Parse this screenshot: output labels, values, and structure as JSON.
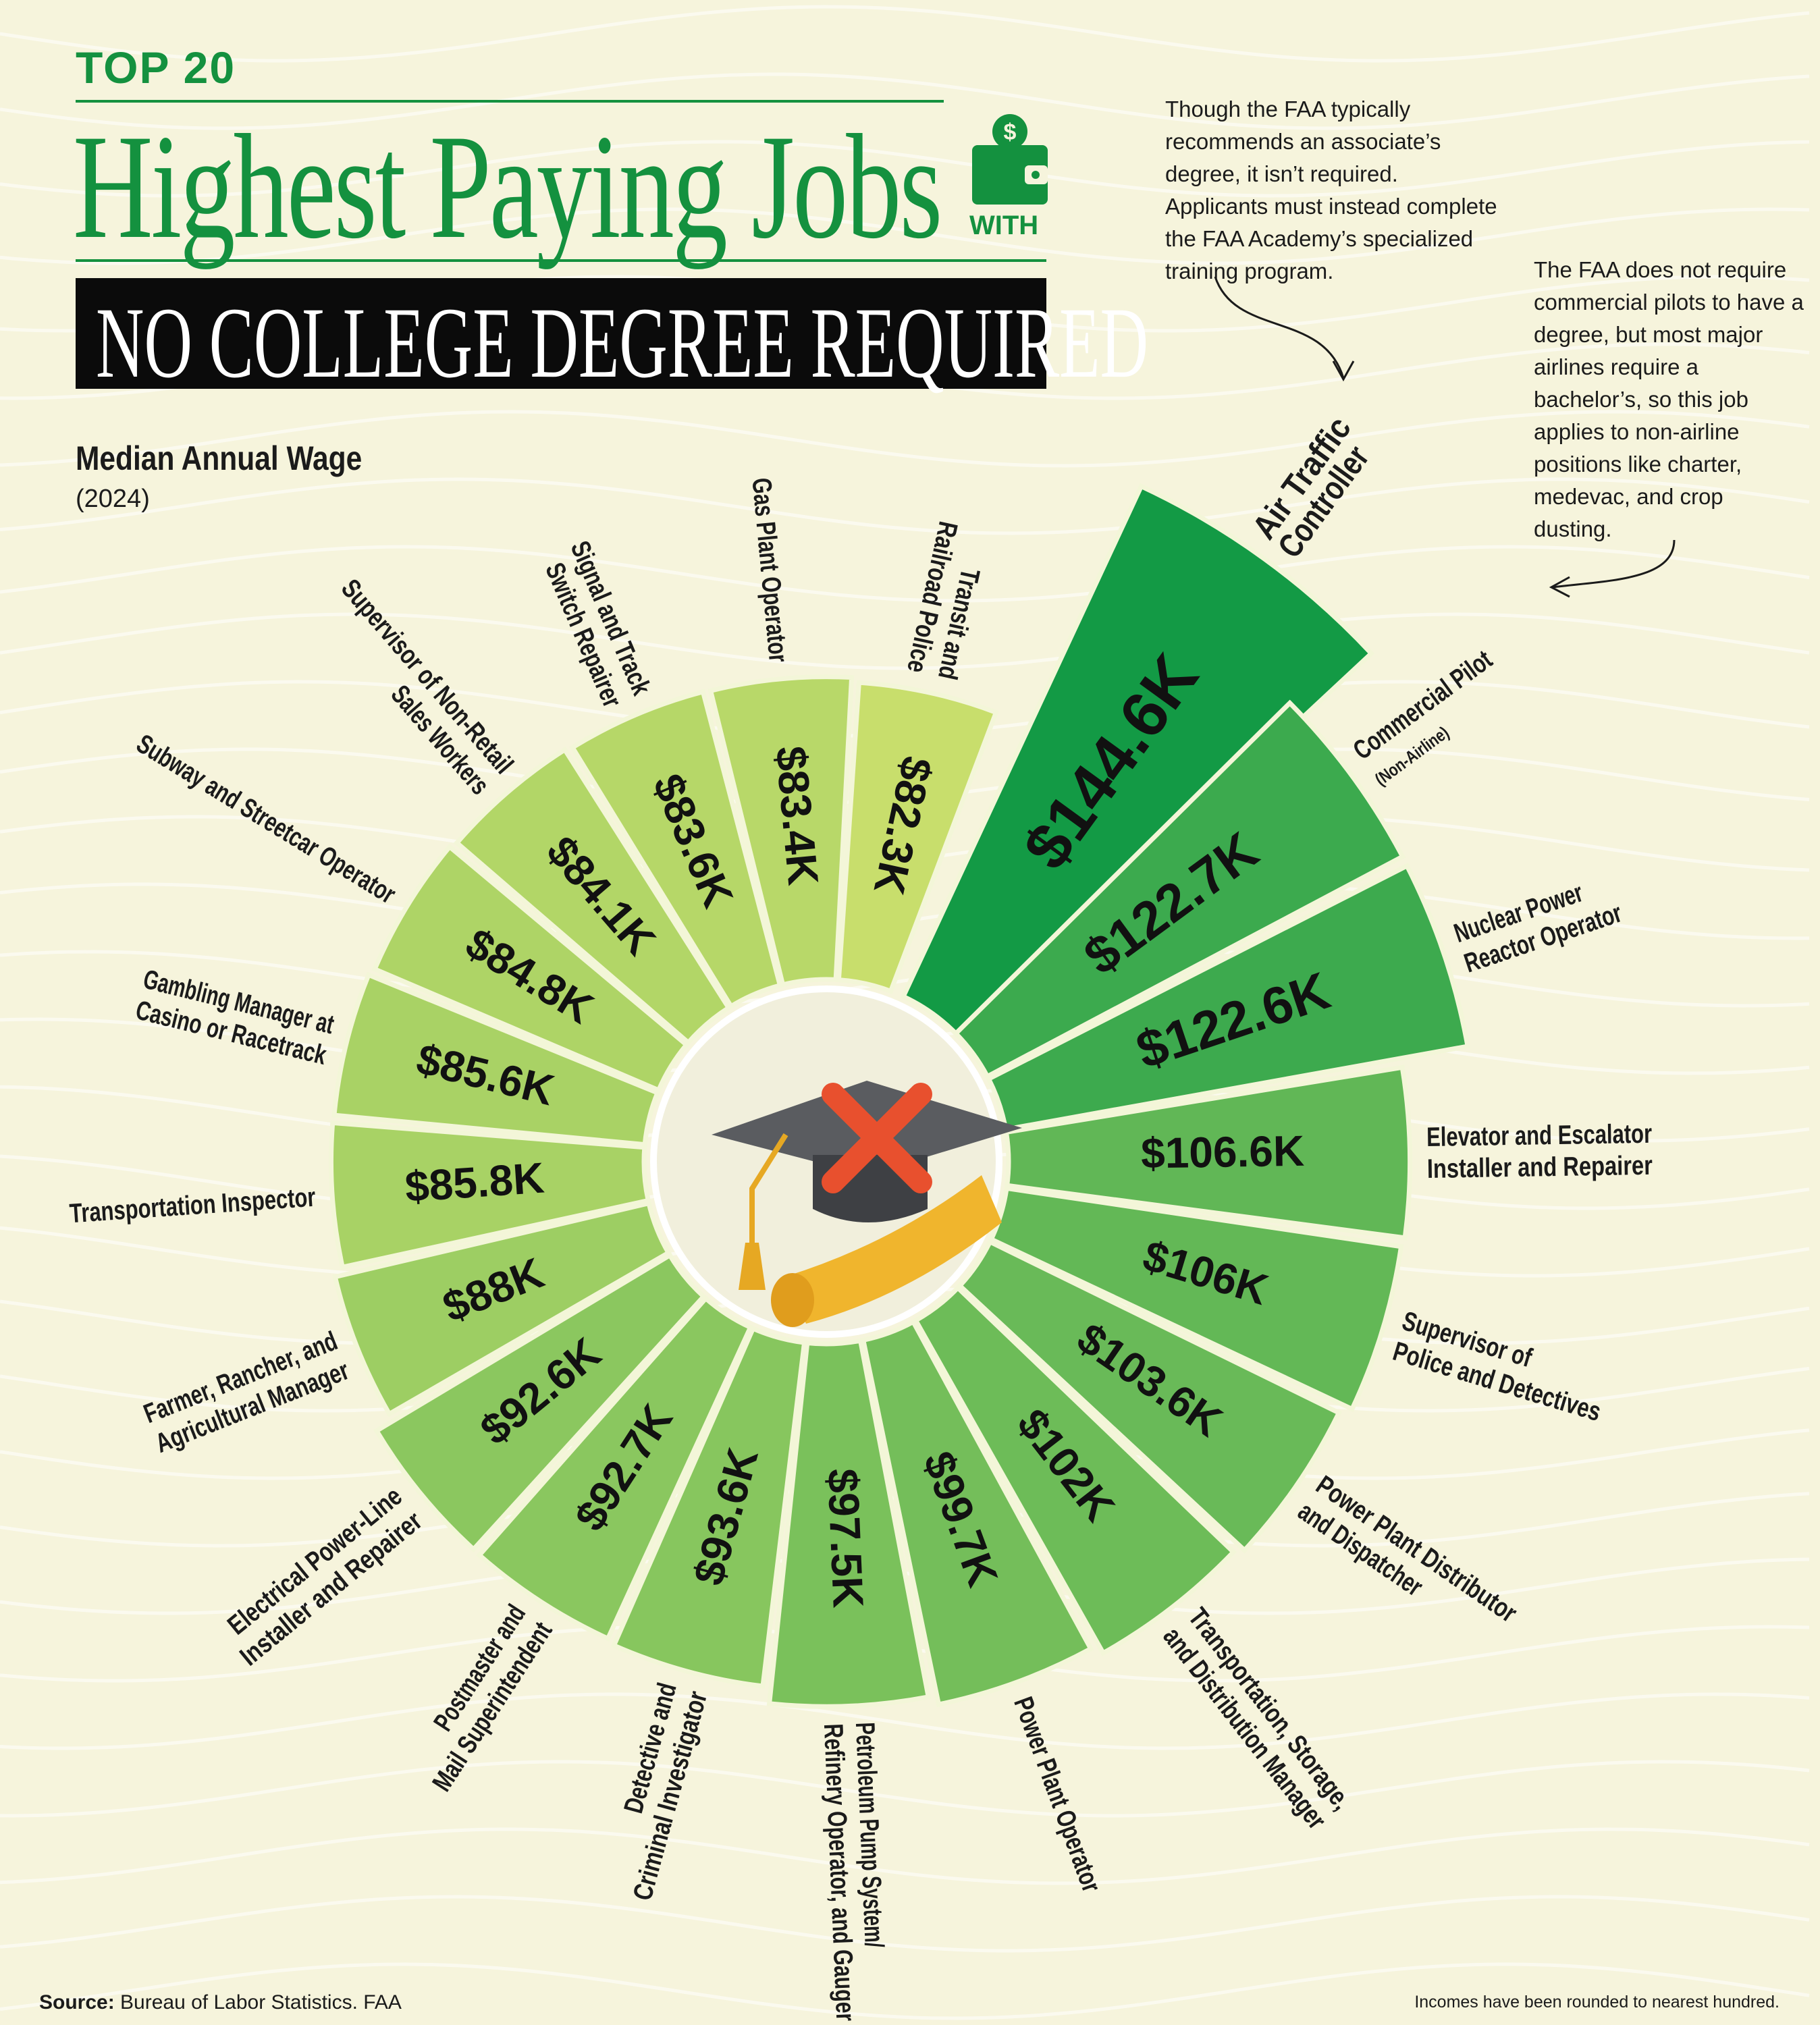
{
  "header": {
    "kicker": "TOP 20",
    "title": "Highest Paying Jobs",
    "with": "WITH",
    "banner": "NO COLLEGE DEGREE REQUIRED",
    "icon": "wallet-dollar-icon"
  },
  "subtitle": {
    "label": "Median Annual Wage",
    "year": "(2024)"
  },
  "notes": {
    "atc": "Though the FAA typically recommends an associate’s degree, it isn’t required. Applicants must instead complete the FAA Academy’s specialized training program.",
    "pilot": "The FAA does not require commercial pilots to have a degree, but most major airlines require a bachelor’s, so this job applies to non-airline positions like charter, medevac, and crop dusting."
  },
  "footer": {
    "source_label": "Source:",
    "source": "Bureau of Labor Statistics. FAA",
    "rounding": "Incomes have been rounded to nearest hundred."
  },
  "colors": {
    "low": "#c8de6c",
    "high": "#139a45",
    "title": "#14913f",
    "background": "#f6f4dc"
  },
  "chart_data": {
    "type": "radial-bar",
    "unit": "USD thousands",
    "categories": [
      "Air Traffic Controller",
      "Commercial Pilot (Non-Airline)",
      "Nuclear Power Reactor Operator",
      "Elevator and Escalator Installer and Repairer",
      "Supervisor of Police and Detectives",
      "Power Plant Distributor and Dispatcher",
      "Transportation, Storage, and Distribution Manager",
      "Power Plant Operator",
      "Petroleum Pump System/Refinery Operator, and Gauger",
      "Detective and Criminal Investigator",
      "Postmaster and Mail Superintendent",
      "Electrical Power-Line Installer and Repairer",
      "Farmer, Rancher, and Agricultural Manager",
      "Transportation Inspector",
      "Gambling Manager at Casino or Racetrack",
      "Subway and Streetcar Operator",
      "Supervisor of Non-Retail Sales Workers",
      "Signal and Track Switch Repairer",
      "Gas Plant Operator",
      "Transit and Railroad Police"
    ],
    "label_lines": [
      [
        "Air Traffic",
        "Controller"
      ],
      [
        "Commercial Pilot",
        "(Non-Airline)"
      ],
      [
        "Nuclear Power",
        "Reactor Operator"
      ],
      [
        "Elevator and Escalator",
        "Installer and Repairer"
      ],
      [
        "Supervisor of",
        "Police and Detectives"
      ],
      [
        "Power Plant Distributor",
        "and Dispatcher"
      ],
      [
        "Transportation, Storage,",
        "and Distribution Manager"
      ],
      [
        "Power Plant Operator"
      ],
      [
        "Petroleum Pump System/",
        "Refinery Operator, and Gauger"
      ],
      [
        "Detective and",
        "Criminal Investigator"
      ],
      [
        "Postmaster and",
        "Mail Superintendent"
      ],
      [
        "Electrical Power-Line",
        "Installer and Repairer"
      ],
      [
        "Farmer, Rancher, and",
        "Agricultural Manager"
      ],
      [
        "Transportation Inspector"
      ],
      [
        "Gambling Manager at",
        "Casino or Racetrack"
      ],
      [
        "Subway and Streetcar Operator"
      ],
      [
        "Supervisor of Non-Retail",
        "Sales Workers"
      ],
      [
        "Signal and Track",
        "Switch Repairer"
      ],
      [
        "Gas Plant Operator"
      ],
      [
        "Transit and",
        "Railroad Police"
      ]
    ],
    "values": [
      144.6,
      122.7,
      122.6,
      106.6,
      106,
      103.6,
      102,
      99.7,
      97.5,
      93.6,
      92.7,
      92.6,
      88,
      85.8,
      85.6,
      84.8,
      84.1,
      83.6,
      83.4,
      82.3
    ],
    "value_labels": [
      "$144.6K",
      "$122.7K",
      "$122.6K",
      "$106.6K",
      "$106K",
      "$103.6K",
      "$102K",
      "$99.7K",
      "$97.5K",
      "$93.6K",
      "$92.7K",
      "$92.6K",
      "$88K",
      "$85.8K",
      "$85.6K",
      "$84.8K",
      "$84.1K",
      "$83.6K",
      "$83.4K",
      "$82.3K"
    ],
    "center_icon": "graduation-cap-crossed-icon"
  }
}
